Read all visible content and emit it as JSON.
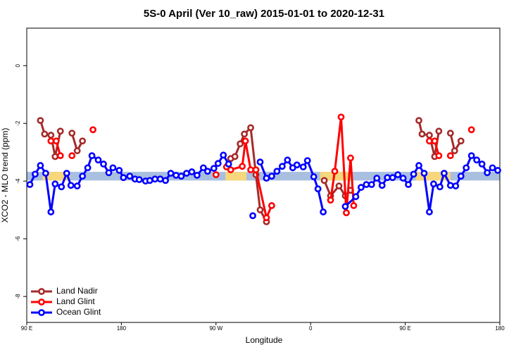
{
  "chart_data": {
    "type": "line",
    "title": "5S-0 April (Ver 10_raw)   2015-01-01 to 2020-12-31",
    "xlabel": "Longitude",
    "ylabel": "XCO2 - MLO trend (ppm)",
    "xlim": [
      90,
      540
    ],
    "ylim": [
      -8.9,
      1.3
    ],
    "xticks": [
      {
        "value": 90,
        "label": "90 E"
      },
      180,
      {
        "value": 270,
        "label": "90 W"
      },
      {
        "value": 360,
        "label": "0"
      },
      {
        "value": 450,
        "label": "90 E"
      },
      {
        "value": 540,
        "label": "180"
      }
    ],
    "yticks": [
      0,
      -2,
      -4,
      -6,
      -8
    ],
    "legend": "bottomleft",
    "band": {
      "ylim": [
        -3.98,
        -3.68
      ],
      "color": "#a9bfe0",
      "highlight_color": "#f6d77c",
      "highlight": [
        [
          105,
          131
        ],
        [
          279,
          299
        ],
        [
          369,
          399
        ],
        [
          460,
          493
        ]
      ]
    },
    "series": [
      {
        "name": "Land Nadir",
        "color": "#a52a2a",
        "x": [
          103,
          107,
          113,
          117,
          122,
          null,
          133,
          138,
          143,
          null,
          284,
          288,
          293,
          297,
          303,
          308,
          312,
          318,
          null,
          373,
          379,
          387,
          393,
          398,
          null,
          463,
          466,
          473,
          478,
          482,
          null,
          493,
          497,
          503
        ],
        "values": [
          -1.9,
          -2.37,
          -2.41,
          -3.15,
          -2.27,
          null,
          -2.34,
          -2.95,
          -2.61,
          null,
          -3.22,
          -3.15,
          -2.71,
          -2.37,
          -2.15,
          -3.78,
          -5.0,
          -5.41,
          null,
          -3.98,
          -4.51,
          -4.17,
          -4.51,
          -4.32,
          null,
          -1.9,
          -2.37,
          -2.41,
          -3.15,
          -2.27,
          null,
          -2.34,
          -2.95,
          -2.61
        ]
      },
      {
        "name": "Land Glint",
        "color": "#ff0000",
        "x": [
          113,
          118,
          122,
          null,
          133,
          null,
          153,
          null,
          270,
          null,
          280,
          284,
          295,
          298,
          303,
          308,
          318,
          323,
          null,
          379,
          383,
          389,
          394,
          398,
          401,
          null,
          473,
          478,
          482,
          null,
          493,
          null,
          513
        ],
        "values": [
          -2.61,
          -2.61,
          -3.12,
          null,
          -3.12,
          null,
          -2.22,
          null,
          -3.78,
          null,
          -3.51,
          -3.61,
          -3.49,
          -2.61,
          -3.61,
          -3.61,
          -5.27,
          -4.85,
          null,
          -4.66,
          -3.66,
          -1.78,
          -5.1,
          -3.2,
          -4.85,
          null,
          -2.61,
          -2.61,
          -3.12,
          null,
          -3.12,
          null,
          -2.22
        ]
      },
      {
        "name": "Ocean Glint",
        "color": "#0000ff",
        "x": [
          93,
          98,
          103,
          108,
          113,
          117,
          123,
          128,
          132,
          138,
          143,
          148,
          152,
          158,
          163,
          168,
          172,
          178,
          182,
          188,
          193,
          197,
          203,
          207,
          212,
          217,
          222,
          227,
          232,
          237,
          242,
          247,
          252,
          258,
          262,
          268,
          272,
          277,
          282,
          null,
          305,
          null,
          312,
          318,
          323,
          328,
          333,
          338,
          343,
          347,
          353,
          357,
          363,
          367,
          372,
          null,
          393,
          403,
          408,
          413,
          418,
          423,
          428,
          433,
          438,
          443,
          448,
          453,
          458,
          463,
          468,
          473,
          477,
          483,
          487,
          493,
          498,
          503,
          508,
          513,
          518,
          523,
          528,
          533,
          538
        ],
        "values": [
          -4.12,
          -3.76,
          -3.46,
          -3.73,
          -5.07,
          -4.1,
          -4.2,
          -3.73,
          -4.15,
          -4.17,
          -3.83,
          -3.54,
          -3.12,
          -3.27,
          -3.41,
          -3.71,
          -3.54,
          -3.63,
          -3.88,
          -3.83,
          -3.93,
          -3.95,
          -4.0,
          -3.98,
          -3.93,
          -3.93,
          -3.98,
          -3.73,
          -3.8,
          -3.83,
          -3.73,
          -3.68,
          -3.8,
          -3.54,
          -3.66,
          -3.56,
          -3.39,
          -3.1,
          -3.41,
          null,
          -5.2,
          null,
          -3.34,
          -3.9,
          -3.83,
          -3.66,
          -3.49,
          -3.27,
          -3.54,
          -3.44,
          -3.51,
          -3.29,
          -3.85,
          -4.27,
          -5.07,
          null,
          -4.88,
          -4.54,
          -4.22,
          -4.12,
          -4.12,
          -3.9,
          -4.15,
          -3.88,
          -3.88,
          -3.78,
          -3.9,
          -4.12,
          -3.76,
          -3.46,
          -3.73,
          -5.07,
          -4.1,
          -4.2,
          -3.73,
          -4.15,
          -4.17,
          -3.83,
          -3.54,
          -3.12,
          -3.27,
          -3.41,
          -3.71,
          -3.54,
          -3.63
        ]
      }
    ]
  }
}
